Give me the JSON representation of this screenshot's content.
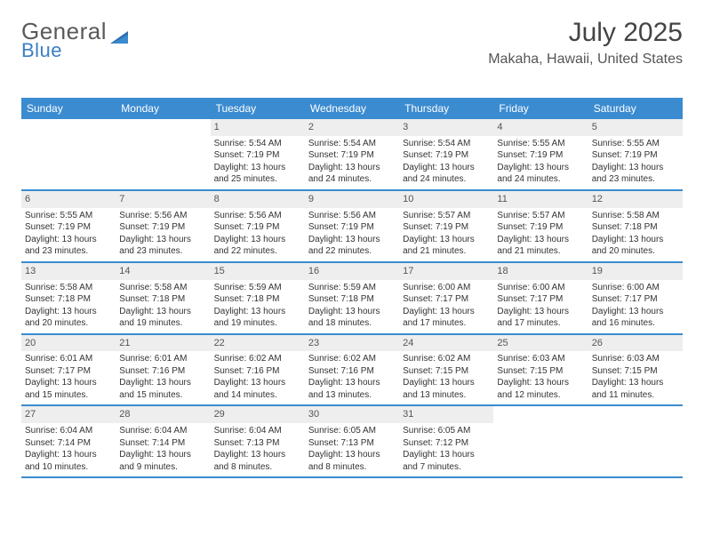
{
  "brand": {
    "word1": "General",
    "word2": "Blue"
  },
  "title": "July 2025",
  "location": "Makaha, Hawaii, United States",
  "colors": {
    "header_bg": "#3b8bd0",
    "header_text": "#ffffff",
    "daynum_bg": "#eeeeee",
    "border": "#3b8bd0",
    "body_text": "#333333",
    "title_text": "#444444"
  },
  "dow": [
    "Sunday",
    "Monday",
    "Tuesday",
    "Wednesday",
    "Thursday",
    "Friday",
    "Saturday"
  ],
  "weeks": [
    [
      {
        "n": "",
        "lines": []
      },
      {
        "n": "",
        "lines": []
      },
      {
        "n": "1",
        "lines": [
          "Sunrise: 5:54 AM",
          "Sunset: 7:19 PM",
          "Daylight: 13 hours and 25 minutes."
        ]
      },
      {
        "n": "2",
        "lines": [
          "Sunrise: 5:54 AM",
          "Sunset: 7:19 PM",
          "Daylight: 13 hours and 24 minutes."
        ]
      },
      {
        "n": "3",
        "lines": [
          "Sunrise: 5:54 AM",
          "Sunset: 7:19 PM",
          "Daylight: 13 hours and 24 minutes."
        ]
      },
      {
        "n": "4",
        "lines": [
          "Sunrise: 5:55 AM",
          "Sunset: 7:19 PM",
          "Daylight: 13 hours and 24 minutes."
        ]
      },
      {
        "n": "5",
        "lines": [
          "Sunrise: 5:55 AM",
          "Sunset: 7:19 PM",
          "Daylight: 13 hours and 23 minutes."
        ]
      }
    ],
    [
      {
        "n": "6",
        "lines": [
          "Sunrise: 5:55 AM",
          "Sunset: 7:19 PM",
          "Daylight: 13 hours and 23 minutes."
        ]
      },
      {
        "n": "7",
        "lines": [
          "Sunrise: 5:56 AM",
          "Sunset: 7:19 PM",
          "Daylight: 13 hours and 23 minutes."
        ]
      },
      {
        "n": "8",
        "lines": [
          "Sunrise: 5:56 AM",
          "Sunset: 7:19 PM",
          "Daylight: 13 hours and 22 minutes."
        ]
      },
      {
        "n": "9",
        "lines": [
          "Sunrise: 5:56 AM",
          "Sunset: 7:19 PM",
          "Daylight: 13 hours and 22 minutes."
        ]
      },
      {
        "n": "10",
        "lines": [
          "Sunrise: 5:57 AM",
          "Sunset: 7:19 PM",
          "Daylight: 13 hours and 21 minutes."
        ]
      },
      {
        "n": "11",
        "lines": [
          "Sunrise: 5:57 AM",
          "Sunset: 7:19 PM",
          "Daylight: 13 hours and 21 minutes."
        ]
      },
      {
        "n": "12",
        "lines": [
          "Sunrise: 5:58 AM",
          "Sunset: 7:18 PM",
          "Daylight: 13 hours and 20 minutes."
        ]
      }
    ],
    [
      {
        "n": "13",
        "lines": [
          "Sunrise: 5:58 AM",
          "Sunset: 7:18 PM",
          "Daylight: 13 hours and 20 minutes."
        ]
      },
      {
        "n": "14",
        "lines": [
          "Sunrise: 5:58 AM",
          "Sunset: 7:18 PM",
          "Daylight: 13 hours and 19 minutes."
        ]
      },
      {
        "n": "15",
        "lines": [
          "Sunrise: 5:59 AM",
          "Sunset: 7:18 PM",
          "Daylight: 13 hours and 19 minutes."
        ]
      },
      {
        "n": "16",
        "lines": [
          "Sunrise: 5:59 AM",
          "Sunset: 7:18 PM",
          "Daylight: 13 hours and 18 minutes."
        ]
      },
      {
        "n": "17",
        "lines": [
          "Sunrise: 6:00 AM",
          "Sunset: 7:17 PM",
          "Daylight: 13 hours and 17 minutes."
        ]
      },
      {
        "n": "18",
        "lines": [
          "Sunrise: 6:00 AM",
          "Sunset: 7:17 PM",
          "Daylight: 13 hours and 17 minutes."
        ]
      },
      {
        "n": "19",
        "lines": [
          "Sunrise: 6:00 AM",
          "Sunset: 7:17 PM",
          "Daylight: 13 hours and 16 minutes."
        ]
      }
    ],
    [
      {
        "n": "20",
        "lines": [
          "Sunrise: 6:01 AM",
          "Sunset: 7:17 PM",
          "Daylight: 13 hours and 15 minutes."
        ]
      },
      {
        "n": "21",
        "lines": [
          "Sunrise: 6:01 AM",
          "Sunset: 7:16 PM",
          "Daylight: 13 hours and 15 minutes."
        ]
      },
      {
        "n": "22",
        "lines": [
          "Sunrise: 6:02 AM",
          "Sunset: 7:16 PM",
          "Daylight: 13 hours and 14 minutes."
        ]
      },
      {
        "n": "23",
        "lines": [
          "Sunrise: 6:02 AM",
          "Sunset: 7:16 PM",
          "Daylight: 13 hours and 13 minutes."
        ]
      },
      {
        "n": "24",
        "lines": [
          "Sunrise: 6:02 AM",
          "Sunset: 7:15 PM",
          "Daylight: 13 hours and 13 minutes."
        ]
      },
      {
        "n": "25",
        "lines": [
          "Sunrise: 6:03 AM",
          "Sunset: 7:15 PM",
          "Daylight: 13 hours and 12 minutes."
        ]
      },
      {
        "n": "26",
        "lines": [
          "Sunrise: 6:03 AM",
          "Sunset: 7:15 PM",
          "Daylight: 13 hours and 11 minutes."
        ]
      }
    ],
    [
      {
        "n": "27",
        "lines": [
          "Sunrise: 6:04 AM",
          "Sunset: 7:14 PM",
          "Daylight: 13 hours and 10 minutes."
        ]
      },
      {
        "n": "28",
        "lines": [
          "Sunrise: 6:04 AM",
          "Sunset: 7:14 PM",
          "Daylight: 13 hours and 9 minutes."
        ]
      },
      {
        "n": "29",
        "lines": [
          "Sunrise: 6:04 AM",
          "Sunset: 7:13 PM",
          "Daylight: 13 hours and 8 minutes."
        ]
      },
      {
        "n": "30",
        "lines": [
          "Sunrise: 6:05 AM",
          "Sunset: 7:13 PM",
          "Daylight: 13 hours and 8 minutes."
        ]
      },
      {
        "n": "31",
        "lines": [
          "Sunrise: 6:05 AM",
          "Sunset: 7:12 PM",
          "Daylight: 13 hours and 7 minutes."
        ]
      },
      {
        "n": "",
        "lines": []
      },
      {
        "n": "",
        "lines": []
      }
    ]
  ]
}
